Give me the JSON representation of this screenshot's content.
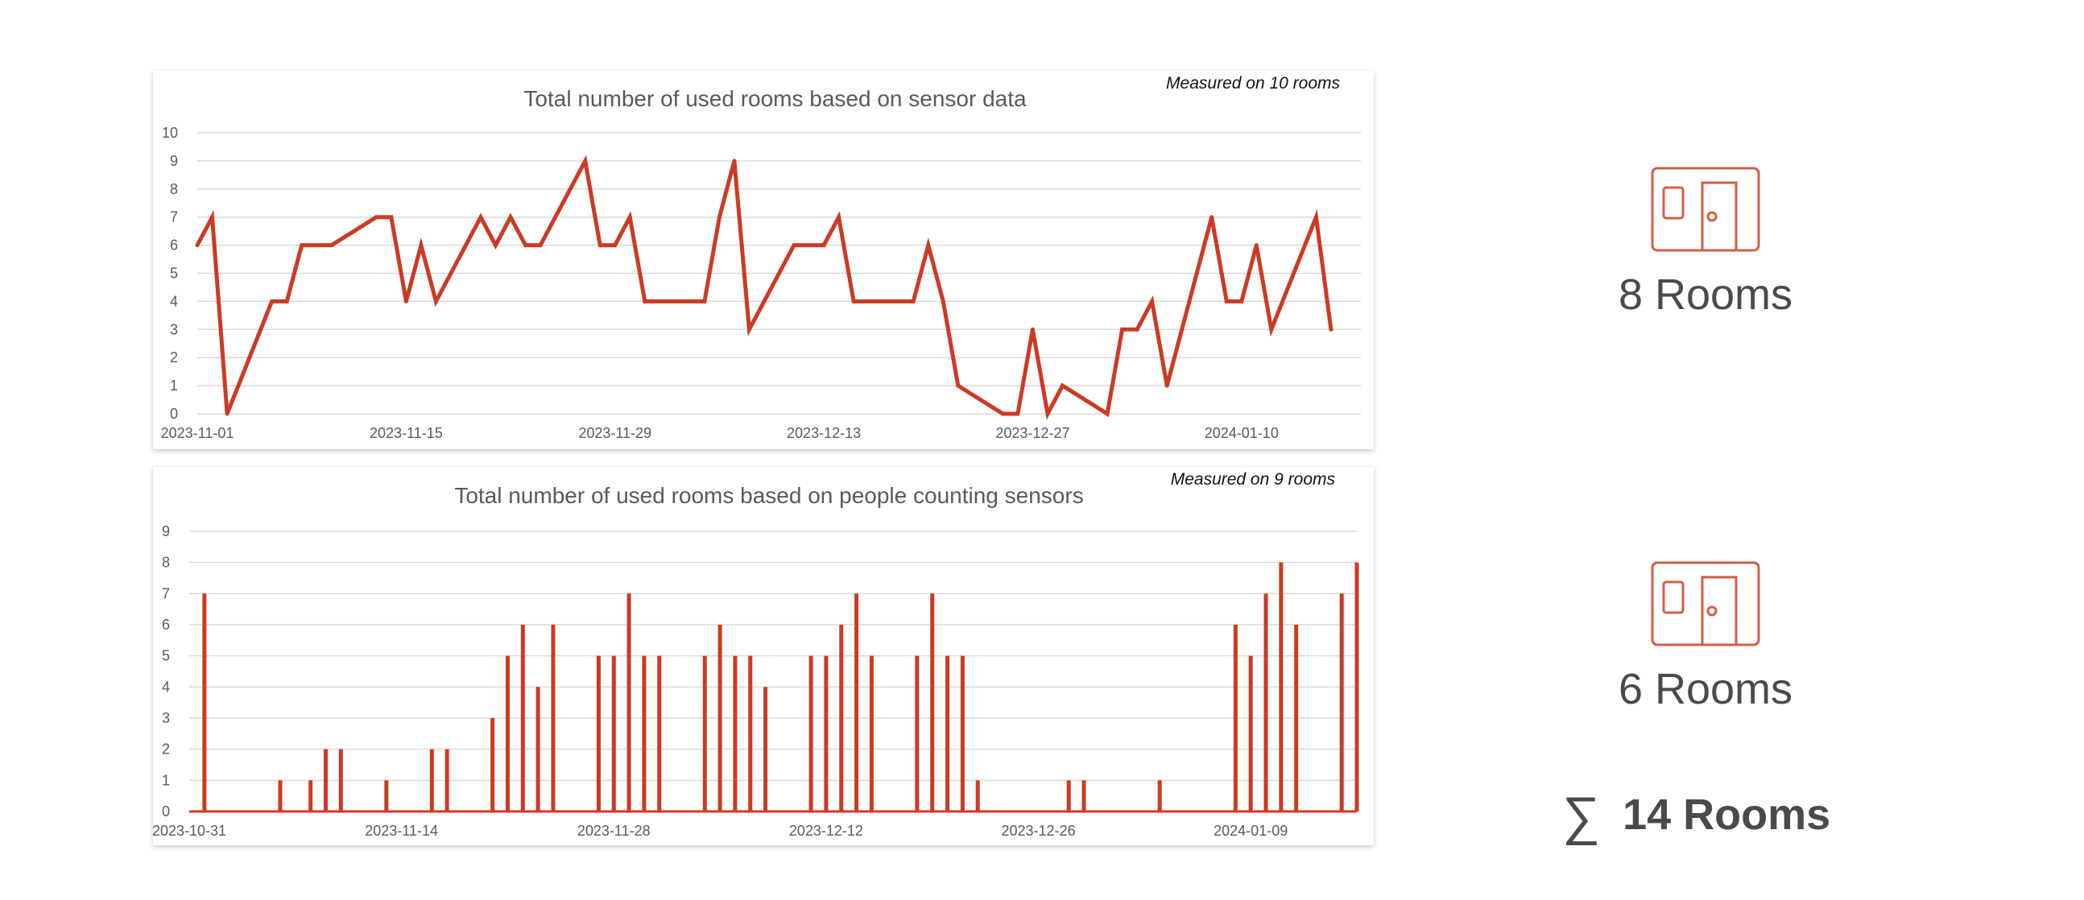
{
  "chart_data": [
    {
      "type": "line",
      "title": "Total number of used rooms based on sensor data",
      "annotation": "Measured on 10 rooms",
      "xlabel": "",
      "ylabel": "",
      "ylim": [
        0,
        10
      ],
      "yticks": [
        0,
        1,
        2,
        3,
        4,
        5,
        6,
        7,
        8,
        9,
        10
      ],
      "x_start": "2023-11-01",
      "x_days": 78,
      "xtick_labels": [
        {
          "day": 0,
          "label": "2023-11-01"
        },
        {
          "day": 14,
          "label": "2023-11-15"
        },
        {
          "day": 28,
          "label": "2023-11-29"
        },
        {
          "day": 42,
          "label": "2023-12-13"
        },
        {
          "day": 56,
          "label": "2023-12-27"
        },
        {
          "day": 70,
          "label": "2024-01-10"
        }
      ],
      "series": [
        {
          "name": "Used rooms",
          "color": "#cc3a23",
          "points": [
            [
              0,
              6
            ],
            [
              1,
              7
            ],
            [
              2,
              0
            ],
            [
              5,
              4
            ],
            [
              6,
              4
            ],
            [
              7,
              6
            ],
            [
              9,
              6
            ],
            [
              12,
              7
            ],
            [
              13,
              7
            ],
            [
              14,
              4
            ],
            [
              15,
              6
            ],
            [
              16,
              4
            ],
            [
              19,
              7
            ],
            [
              20,
              6
            ],
            [
              21,
              7
            ],
            [
              22,
              6
            ],
            [
              23,
              6
            ],
            [
              26,
              9
            ],
            [
              27,
              6
            ],
            [
              28,
              6
            ],
            [
              29,
              7
            ],
            [
              30,
              4
            ],
            [
              34,
              4
            ],
            [
              35,
              7
            ],
            [
              36,
              9
            ],
            [
              37,
              3
            ],
            [
              40,
              6
            ],
            [
              42,
              6
            ],
            [
              43,
              7
            ],
            [
              44,
              4
            ],
            [
              48,
              4
            ],
            [
              49,
              6
            ],
            [
              50,
              4
            ],
            [
              51,
              1
            ],
            [
              54,
              0
            ],
            [
              55,
              0
            ],
            [
              56,
              3
            ],
            [
              57,
              0
            ],
            [
              58,
              1
            ],
            [
              61,
              0
            ],
            [
              62,
              3
            ],
            [
              63,
              3
            ],
            [
              64,
              4
            ],
            [
              65,
              1
            ],
            [
              68,
              7
            ],
            [
              69,
              4
            ],
            [
              70,
              4
            ],
            [
              71,
              6
            ],
            [
              72,
              3
            ],
            [
              75,
              7
            ],
            [
              76,
              3
            ]
          ]
        }
      ]
    },
    {
      "type": "bar",
      "title": "Total number of used rooms based on people counting sensors",
      "annotation": "Measured on 9 rooms",
      "xlabel": "",
      "ylabel": "",
      "ylim": [
        0,
        9
      ],
      "yticks": [
        0,
        1,
        2,
        3,
        4,
        5,
        6,
        7,
        8,
        9
      ],
      "x_start": "2023-10-31",
      "x_days": 77,
      "xtick_labels": [
        {
          "day": 0,
          "label": "2023-10-31"
        },
        {
          "day": 14,
          "label": "2023-11-14"
        },
        {
          "day": 28,
          "label": "2023-11-28"
        },
        {
          "day": 42,
          "label": "2023-12-12"
        },
        {
          "day": 56,
          "label": "2023-12-26"
        },
        {
          "day": 70,
          "label": "2024-01-09"
        }
      ],
      "series": [
        {
          "name": "Used rooms",
          "color": "#cc3a23",
          "points": [
            [
              1,
              7
            ],
            [
              6,
              1
            ],
            [
              8,
              1
            ],
            [
              9,
              2
            ],
            [
              10,
              2
            ],
            [
              13,
              1
            ],
            [
              16,
              2
            ],
            [
              17,
              2
            ],
            [
              20,
              3
            ],
            [
              21,
              5
            ],
            [
              22,
              6
            ],
            [
              23,
              4
            ],
            [
              24,
              6
            ],
            [
              27,
              5
            ],
            [
              28,
              5
            ],
            [
              29,
              7
            ],
            [
              30,
              5
            ],
            [
              31,
              5
            ],
            [
              34,
              5
            ],
            [
              35,
              6
            ],
            [
              36,
              5
            ],
            [
              37,
              5
            ],
            [
              38,
              4
            ],
            [
              41,
              5
            ],
            [
              42,
              5
            ],
            [
              43,
              6
            ],
            [
              44,
              7
            ],
            [
              45,
              5
            ],
            [
              48,
              5
            ],
            [
              49,
              7
            ],
            [
              50,
              5
            ],
            [
              51,
              5
            ],
            [
              52,
              1
            ],
            [
              58,
              1
            ],
            [
              59,
              1
            ],
            [
              64,
              1
            ],
            [
              69,
              6
            ],
            [
              70,
              5
            ],
            [
              71,
              7
            ],
            [
              72,
              8
            ],
            [
              73,
              6
            ],
            [
              76,
              7
            ],
            [
              77,
              8
            ]
          ]
        }
      ]
    }
  ],
  "summary": {
    "sensor_rooms": "8 Rooms",
    "counting_rooms": "6 Rooms",
    "total_symbol": "∑",
    "total": "14 Rooms"
  },
  "colors": {
    "accent": "#cc3a23",
    "icon": "#d35d45",
    "text": "#4a4a4a",
    "grid": "#d9d9d9"
  },
  "icons": {
    "room": "door-room-icon",
    "sum": "sigma-icon"
  }
}
